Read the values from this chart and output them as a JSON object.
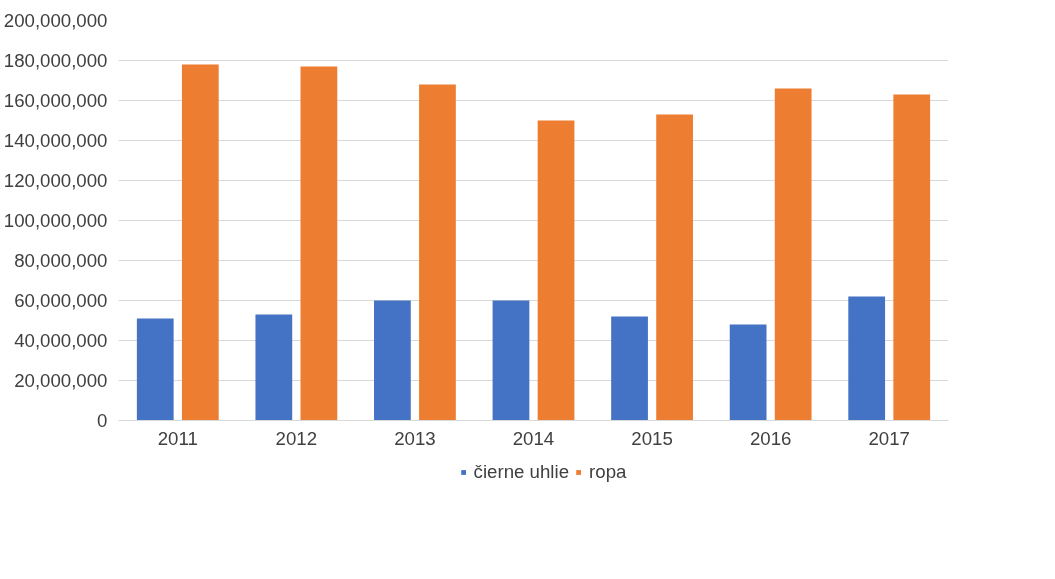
{
  "chart_data": {
    "type": "bar",
    "categories": [
      "2011",
      "2012",
      "2013",
      "2014",
      "2015",
      "2016",
      "2017"
    ],
    "series": [
      {
        "name": "čierne uhlie",
        "color": "#4472c4",
        "values": [
          51000000,
          53000000,
          60000000,
          60000000,
          52000000,
          48000000,
          62000000
        ]
      },
      {
        "name": "ropa",
        "color": "#ed7d31",
        "values": [
          178000000,
          177000000,
          168000000,
          150000000,
          153000000,
          166000000,
          163000000
        ]
      }
    ],
    "ylim": [
      0,
      200000000
    ],
    "yticks": [
      {
        "value": 0,
        "label": "0"
      },
      {
        "value": 20000000,
        "label": "20,000,000"
      },
      {
        "value": 40000000,
        "label": "40,000,000"
      },
      {
        "value": 60000000,
        "label": "60,000,000"
      },
      {
        "value": 80000000,
        "label": "80,000,000"
      },
      {
        "value": 100000000,
        "label": "100,000,000"
      },
      {
        "value": 120000000,
        "label": "120,000,000"
      },
      {
        "value": 140000000,
        "label": "140,000,000"
      },
      {
        "value": 160000000,
        "label": "160,000,000"
      },
      {
        "value": 180000000,
        "label": "180,000,000"
      },
      {
        "value": 200000000,
        "label": "200,000,000"
      }
    ],
    "grid": "y",
    "legend": "bottom"
  }
}
